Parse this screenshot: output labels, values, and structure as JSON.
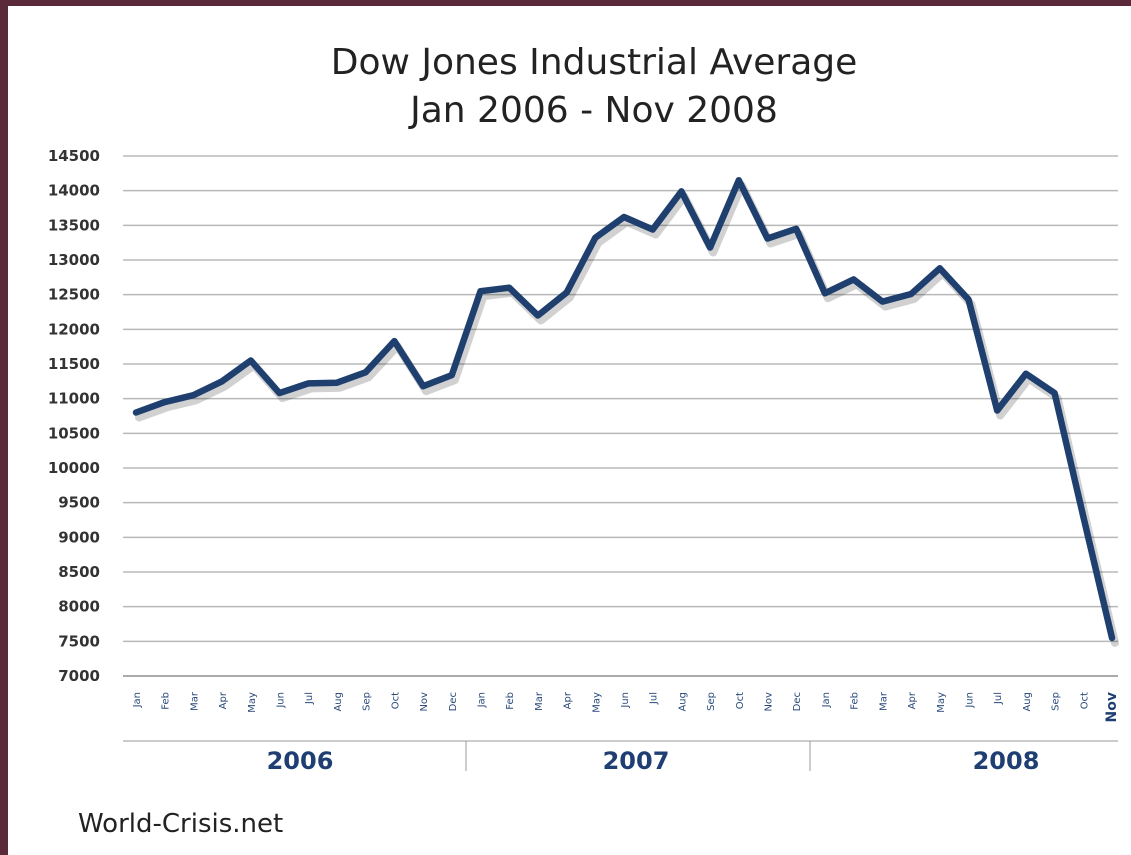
{
  "chart_data": {
    "type": "line",
    "title": "Dow Jones Industrial Average",
    "subtitle": "Jan 2006 - Nov 2008",
    "source": "World-Crisis.net",
    "ylim": [
      7000,
      14500
    ],
    "yticks": [
      14500,
      14000,
      13500,
      13000,
      12500,
      12000,
      11500,
      11000,
      10500,
      10000,
      9500,
      9000,
      8500,
      8000,
      7500,
      7000
    ],
    "grid": true,
    "legend": "none",
    "line_color": "#1f3f6f",
    "years": [
      "2006",
      "2007",
      "2008"
    ],
    "categories": [
      "Jan",
      "Feb",
      "Mar",
      "Apr",
      "May",
      "Jun",
      "Jul",
      "Aug",
      "Sep",
      "Oct",
      "Nov",
      "Dec",
      "Jan",
      "Feb",
      "Mar",
      "Apr",
      "May",
      "Jun",
      "Jul",
      "Aug",
      "Sep",
      "Oct",
      "Nov",
      "Dec",
      "Jan",
      "Feb",
      "Mar",
      "Apr",
      "May",
      "Jun",
      "Jul",
      "Aug",
      "Sep",
      "Oct",
      "Nov"
    ],
    "values": [
      10800,
      10950,
      11050,
      11250,
      11550,
      11080,
      11220,
      11230,
      11380,
      11830,
      11180,
      11340,
      12550,
      12600,
      12200,
      12530,
      13320,
      13620,
      13440,
      13990,
      13180,
      14150,
      13310,
      13450,
      12520,
      12720,
      12400,
      12510,
      12880,
      12430,
      10830,
      11360,
      11080,
      9300,
      7550
    ]
  }
}
